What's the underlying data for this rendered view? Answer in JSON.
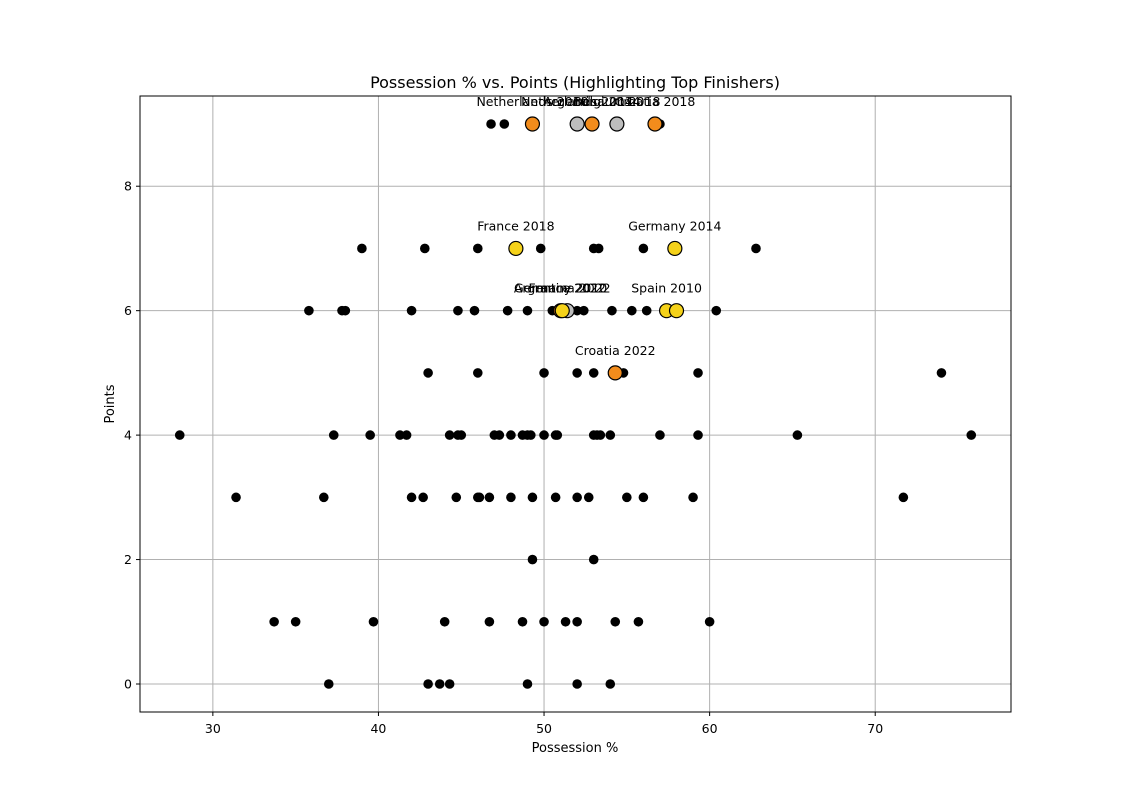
{
  "chart_data": {
    "type": "scatter",
    "title": "Possession % vs. Points (Highlighting Top Finishers)",
    "xlabel": "Possession %",
    "ylabel": "Points",
    "xlim": [
      25.6,
      78.2
    ],
    "ylim": [
      -0.45,
      9.45
    ],
    "xticks": [
      30,
      40,
      50,
      60,
      70
    ],
    "yticks": [
      0,
      2,
      4,
      6,
      8
    ],
    "grid": true,
    "colors": {
      "base": "#000000",
      "champion": "#f5d21a",
      "runner_up": "#f28c1c",
      "third": "#bdbdbd",
      "grid": "#b0b0b0"
    },
    "points": [
      {
        "x": 28.0,
        "y": 4
      },
      {
        "x": 31.4,
        "y": 3
      },
      {
        "x": 33.7,
        "y": 1
      },
      {
        "x": 35.0,
        "y": 1
      },
      {
        "x": 35.8,
        "y": 6
      },
      {
        "x": 36.7,
        "y": 3
      },
      {
        "x": 37.0,
        "y": 0
      },
      {
        "x": 37.3,
        "y": 4
      },
      {
        "x": 37.8,
        "y": 6
      },
      {
        "x": 38.0,
        "y": 6
      },
      {
        "x": 39.0,
        "y": 7
      },
      {
        "x": 39.5,
        "y": 4
      },
      {
        "x": 39.7,
        "y": 1
      },
      {
        "x": 41.3,
        "y": 4
      },
      {
        "x": 41.7,
        "y": 4
      },
      {
        "x": 42.0,
        "y": 6
      },
      {
        "x": 42.0,
        "y": 3
      },
      {
        "x": 42.7,
        "y": 3
      },
      {
        "x": 42.8,
        "y": 7
      },
      {
        "x": 43.0,
        "y": 5
      },
      {
        "x": 43.0,
        "y": 0
      },
      {
        "x": 43.7,
        "y": 0
      },
      {
        "x": 44.0,
        "y": 1
      },
      {
        "x": 44.3,
        "y": 4
      },
      {
        "x": 44.3,
        "y": 0
      },
      {
        "x": 44.7,
        "y": 3
      },
      {
        "x": 44.8,
        "y": 6
      },
      {
        "x": 44.8,
        "y": 4
      },
      {
        "x": 45.0,
        "y": 4
      },
      {
        "x": 45.8,
        "y": 6
      },
      {
        "x": 46.0,
        "y": 7
      },
      {
        "x": 46.0,
        "y": 5
      },
      {
        "x": 46.0,
        "y": 3
      },
      {
        "x": 46.1,
        "y": 3
      },
      {
        "x": 46.7,
        "y": 3
      },
      {
        "x": 46.7,
        "y": 1
      },
      {
        "x": 46.8,
        "y": 9
      },
      {
        "x": 47.0,
        "y": 4
      },
      {
        "x": 47.3,
        "y": 4
      },
      {
        "x": 47.6,
        "y": 9
      },
      {
        "x": 47.8,
        "y": 6
      },
      {
        "x": 48.0,
        "y": 4
      },
      {
        "x": 48.0,
        "y": 3
      },
      {
        "x": 48.7,
        "y": 4
      },
      {
        "x": 48.7,
        "y": 1
      },
      {
        "x": 49.0,
        "y": 6
      },
      {
        "x": 49.0,
        "y": 4
      },
      {
        "x": 49.0,
        "y": 0
      },
      {
        "x": 49.2,
        "y": 4
      },
      {
        "x": 49.3,
        "y": 3
      },
      {
        "x": 49.3,
        "y": 2
      },
      {
        "x": 49.8,
        "y": 7
      },
      {
        "x": 50.0,
        "y": 5
      },
      {
        "x": 50.0,
        "y": 4
      },
      {
        "x": 50.0,
        "y": 1
      },
      {
        "x": 50.5,
        "y": 6
      },
      {
        "x": 50.7,
        "y": 4
      },
      {
        "x": 50.7,
        "y": 3
      },
      {
        "x": 50.8,
        "y": 4
      },
      {
        "x": 51.3,
        "y": 1
      },
      {
        "x": 52.0,
        "y": 6
      },
      {
        "x": 52.0,
        "y": 5
      },
      {
        "x": 52.0,
        "y": 3
      },
      {
        "x": 52.0,
        "y": 1
      },
      {
        "x": 52.0,
        "y": 0
      },
      {
        "x": 52.4,
        "y": 6
      },
      {
        "x": 52.7,
        "y": 3
      },
      {
        "x": 53.0,
        "y": 7
      },
      {
        "x": 53.0,
        "y": 5
      },
      {
        "x": 53.0,
        "y": 4
      },
      {
        "x": 53.0,
        "y": 2
      },
      {
        "x": 53.2,
        "y": 4
      },
      {
        "x": 53.3,
        "y": 7
      },
      {
        "x": 53.4,
        "y": 4
      },
      {
        "x": 54.0,
        "y": 4
      },
      {
        "x": 54.0,
        "y": 0
      },
      {
        "x": 54.1,
        "y": 6
      },
      {
        "x": 54.3,
        "y": 1
      },
      {
        "x": 54.8,
        "y": 5
      },
      {
        "x": 55.0,
        "y": 3
      },
      {
        "x": 55.3,
        "y": 6
      },
      {
        "x": 55.7,
        "y": 1
      },
      {
        "x": 56.0,
        "y": 7
      },
      {
        "x": 56.0,
        "y": 3
      },
      {
        "x": 56.2,
        "y": 6
      },
      {
        "x": 57.0,
        "y": 9
      },
      {
        "x": 57.0,
        "y": 4
      },
      {
        "x": 59.0,
        "y": 3
      },
      {
        "x": 59.3,
        "y": 5
      },
      {
        "x": 59.3,
        "y": 4
      },
      {
        "x": 60.0,
        "y": 1
      },
      {
        "x": 60.4,
        "y": 6
      },
      {
        "x": 62.8,
        "y": 7
      },
      {
        "x": 65.3,
        "y": 4
      },
      {
        "x": 71.7,
        "y": 3
      },
      {
        "x": 74.0,
        "y": 5
      },
      {
        "x": 75.8,
        "y": 4
      }
    ],
    "highlighted": [
      {
        "label": "Netherlands 2014",
        "x": 52.0,
        "y": 9,
        "finish": "third"
      },
      {
        "label": "Belgium 2018",
        "x": 54.4,
        "y": 9,
        "finish": "third"
      },
      {
        "label": "Netherlands 2010",
        "x": 49.3,
        "y": 9,
        "finish": "runner_up"
      },
      {
        "label": "Argentina 2014",
        "x": 52.9,
        "y": 9,
        "finish": "runner_up"
      },
      {
        "label": "Croatia 2018",
        "x": 56.7,
        "y": 9,
        "finish": "runner_up"
      },
      {
        "label": "France 2018",
        "x": 48.3,
        "y": 7,
        "finish": "champion"
      },
      {
        "label": "Germany 2014",
        "x": 57.9,
        "y": 7,
        "finish": "champion"
      },
      {
        "label": "France 2022",
        "x": 51.4,
        "y": 6,
        "finish": "third"
      },
      {
        "label": "Germany 2010",
        "x": 51.0,
        "y": 6,
        "finish": "runner_up"
      },
      {
        "label": "Argentina 2022",
        "x": 51.1,
        "y": 6,
        "finish": "champion"
      },
      {
        "label": "Spain 2010",
        "x": 57.4,
        "y": 6,
        "finish": "champion"
      },
      {
        "label": "Croatia 2022",
        "x": 54.3,
        "y": 5,
        "finish": "runner_up"
      },
      {
        "label": "",
        "x": 58.0,
        "y": 6,
        "finish": "champion"
      }
    ]
  }
}
